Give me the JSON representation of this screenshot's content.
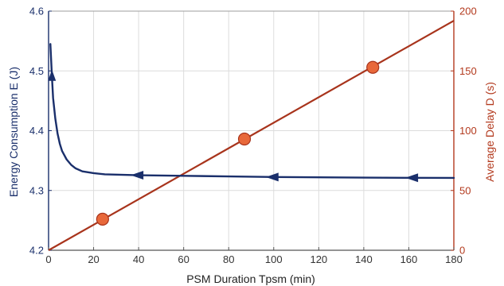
{
  "chart_data": {
    "type": "line",
    "xlabel": "PSM Duration Tpsm (min)",
    "ylabel_left": "Energy Consumption E (J)",
    "ylabel_right": "Average Delay D (s)",
    "xlim": [
      0,
      180
    ],
    "ylim_left": [
      4.2,
      4.6
    ],
    "ylim_right": [
      0,
      200
    ],
    "x_ticks": [
      0,
      20,
      40,
      60,
      80,
      100,
      120,
      140,
      160,
      180
    ],
    "y_left_ticks": [
      4.2,
      4.3,
      4.4,
      4.5,
      4.6
    ],
    "y_right_ticks": [
      0,
      50,
      100,
      150,
      200
    ],
    "grid": true,
    "colors": {
      "energy": "#1a2f6b",
      "delay_line": "#a8341c",
      "delay_marker": "#e8683a",
      "left_axis": "#1a2f6b",
      "right_axis": "#b33a1e"
    },
    "series": [
      {
        "key": "energy",
        "axis": "left",
        "x": [
          0.8,
          1.5,
          2,
          3,
          4,
          5,
          6,
          8,
          10,
          12,
          15,
          20,
          25,
          30,
          40,
          50,
          60,
          80,
          100,
          120,
          140,
          160,
          180
        ],
        "y": [
          4.545,
          4.49,
          4.455,
          4.42,
          4.395,
          4.378,
          4.366,
          4.352,
          4.343,
          4.337,
          4.332,
          4.329,
          4.327,
          4.3265,
          4.3255,
          4.325,
          4.3245,
          4.3235,
          4.3225,
          4.322,
          4.3215,
          4.3212,
          4.321
        ],
        "arrow_markers_x": [
          1.5,
          40,
          100,
          162
        ]
      },
      {
        "key": "delay",
        "axis": "right",
        "x": [
          0,
          180
        ],
        "y": [
          0,
          192
        ],
        "markers": [
          {
            "x": 24,
            "y": 26
          },
          {
            "x": 87,
            "y": 93
          },
          {
            "x": 144,
            "y": 153
          }
        ]
      }
    ]
  }
}
